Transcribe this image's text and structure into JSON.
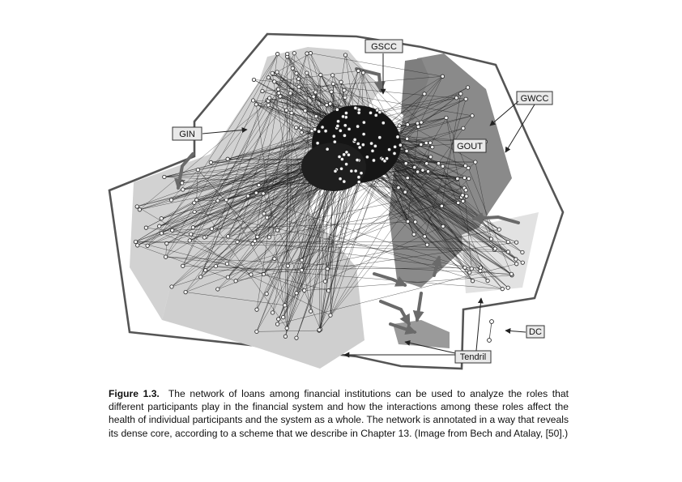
{
  "figure": {
    "labels": {
      "gscc": "GSCC",
      "gin": "GIN",
      "gout": "GOUT",
      "gwcc": "GWCC",
      "dc": "DC",
      "tendril": "Tendril"
    }
  },
  "caption": {
    "number": "Figure 1.3.",
    "text": "The network of loans among financial institutions can be used to analyze the roles that different participants play in the financial system and how the interactions among these roles affect the health of individual participants and the system as a whole. The network is annotated in a way that reveals its dense core, according to a scheme that we describe in Chapter 13. (Image from Bech and Atalay, [50].)"
  }
}
